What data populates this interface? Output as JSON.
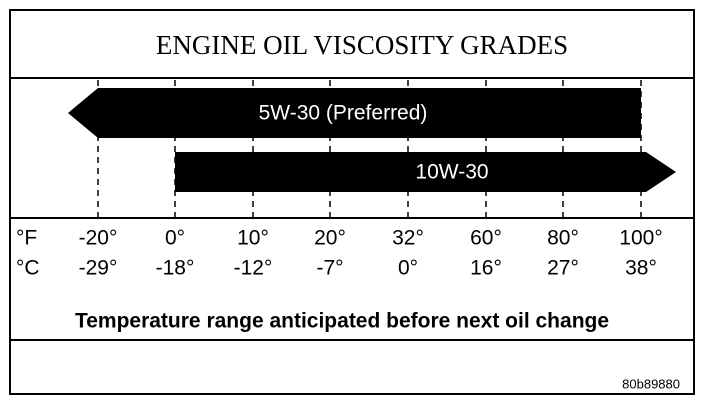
{
  "title": "ENGINE OIL VISCOSITY GRADES",
  "grades": [
    {
      "label": "5W-30 (Preferred)"
    },
    {
      "label": "10W-30"
    }
  ],
  "scale": {
    "fahrenheit_unit": "°F",
    "celsius_unit": "°C",
    "fahrenheit": [
      "-20°",
      "0°",
      "10°",
      "20°",
      "32°",
      "60°",
      "80°",
      "100°"
    ],
    "celsius": [
      "-29°",
      "-18°",
      "-12°",
      "-7°",
      "0°",
      "16°",
      "27°",
      "38°"
    ]
  },
  "caption": "Temperature range anticipated before next oil change",
  "code": "80b89880"
}
